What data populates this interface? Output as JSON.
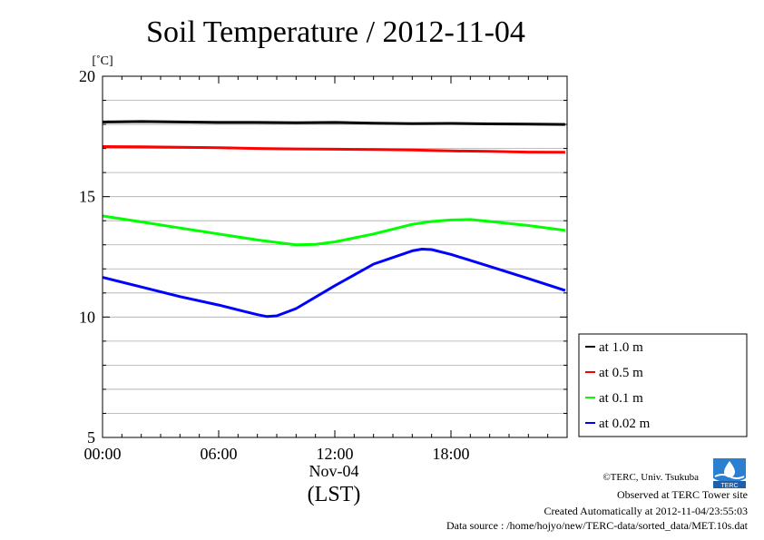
{
  "chart_data": {
    "type": "line",
    "title": "Soil Temperature / 2012-11-04",
    "ylabel": "[˚C]",
    "xlabel": "(LST)",
    "x_date_label": "Nov-04",
    "ylim": [
      5,
      20
    ],
    "xlim": [
      0,
      24
    ],
    "y_major_ticks": [
      5,
      10,
      15,
      20
    ],
    "y_minor_step": 1,
    "x_ticks": [
      {
        "x": 0,
        "label": "00:00"
      },
      {
        "x": 6,
        "label": "06:00"
      },
      {
        "x": 12,
        "label": "12:00"
      },
      {
        "x": 18,
        "label": "18:00"
      }
    ],
    "grid": true,
    "legend_position": "right",
    "series": [
      {
        "name": "at 1.0 m",
        "color": "#000000",
        "x": [
          0,
          2,
          4,
          6,
          8,
          10,
          12,
          14,
          16,
          18,
          20,
          22,
          23.9
        ],
        "y": [
          18.1,
          18.12,
          18.1,
          18.08,
          18.08,
          18.07,
          18.08,
          18.05,
          18.03,
          18.04,
          18.02,
          18.01,
          18.0
        ]
      },
      {
        "name": "at 0.5 m",
        "color": "#ff0000",
        "x": [
          0,
          2,
          4,
          6,
          8,
          10,
          12,
          14,
          16,
          18,
          20,
          22,
          23.9
        ],
        "y": [
          17.08,
          17.07,
          17.05,
          17.03,
          17.0,
          16.98,
          16.97,
          16.96,
          16.94,
          16.9,
          16.88,
          16.85,
          16.84
        ]
      },
      {
        "name": "at 0.1 m",
        "color": "#00ff00",
        "x": [
          0,
          2,
          4,
          6,
          8,
          9,
          10,
          11,
          12,
          14,
          16,
          17,
          18,
          19,
          20,
          22,
          23.9
        ],
        "y": [
          14.2,
          13.95,
          13.7,
          13.45,
          13.2,
          13.1,
          13.0,
          13.02,
          13.12,
          13.45,
          13.85,
          13.97,
          14.03,
          14.05,
          13.97,
          13.8,
          13.6
        ]
      },
      {
        "name": "at 0.02 m",
        "color": "#0000ff",
        "x": [
          0,
          2,
          4,
          6,
          7,
          8,
          8.5,
          9,
          10,
          12,
          14,
          16,
          16.5,
          17,
          18,
          20,
          22,
          23.9
        ],
        "y": [
          11.65,
          11.25,
          10.85,
          10.5,
          10.3,
          10.1,
          10.02,
          10.05,
          10.35,
          11.3,
          12.2,
          12.75,
          12.82,
          12.8,
          12.6,
          12.1,
          11.6,
          11.1
        ]
      }
    ]
  },
  "footer": {
    "copyright": "©TERC, Univ. Tsukuba",
    "observed": "Observed at TERC Tower site",
    "created": "Created Automatically at 2012-11-04/23:55:03",
    "source": "Data source : /home/hojyo/new/TERC-data/sorted_data/MET.10s.dat",
    "logo_text": "TERC"
  }
}
